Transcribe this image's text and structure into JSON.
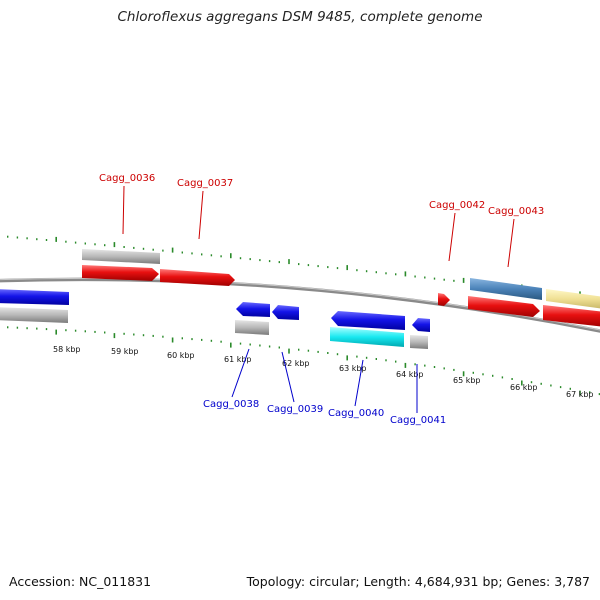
{
  "title": "Chloroflexus aggregans DSM 9485, complete genome",
  "footer": {
    "accession": "Accession: NC_011831",
    "summary": "Topology: circular; Length: 4,684,931 bp; Genes: 3,787"
  },
  "colors": {
    "forward_strand_gene": "#e01010",
    "reverse_strand_gene": "#1010e0",
    "forward_label": "#cc0000",
    "reverse_label": "#0000cc",
    "tick": "#2a8a2a",
    "backbone": "#808080",
    "gray_feature": "#b4b4b4",
    "cyan_feature": "#18e8f0",
    "steelblue_feature": "#4a82b8",
    "khaki_feature": "#f0e094"
  },
  "kbp_labels": [
    "58 kbp",
    "59 kbp",
    "60 kbp",
    "61 kbp",
    "62 kbp",
    "63 kbp",
    "64 kbp",
    "65 kbp",
    "66 kbp",
    "67 kbp"
  ],
  "gene_labels_top": [
    "Cagg_0036",
    "Cagg_0037",
    "Cagg_0042",
    "Cagg_0043"
  ],
  "gene_labels_bottom": [
    "Cagg_0038",
    "Cagg_0039",
    "Cagg_0040",
    "Cagg_0041"
  ]
}
